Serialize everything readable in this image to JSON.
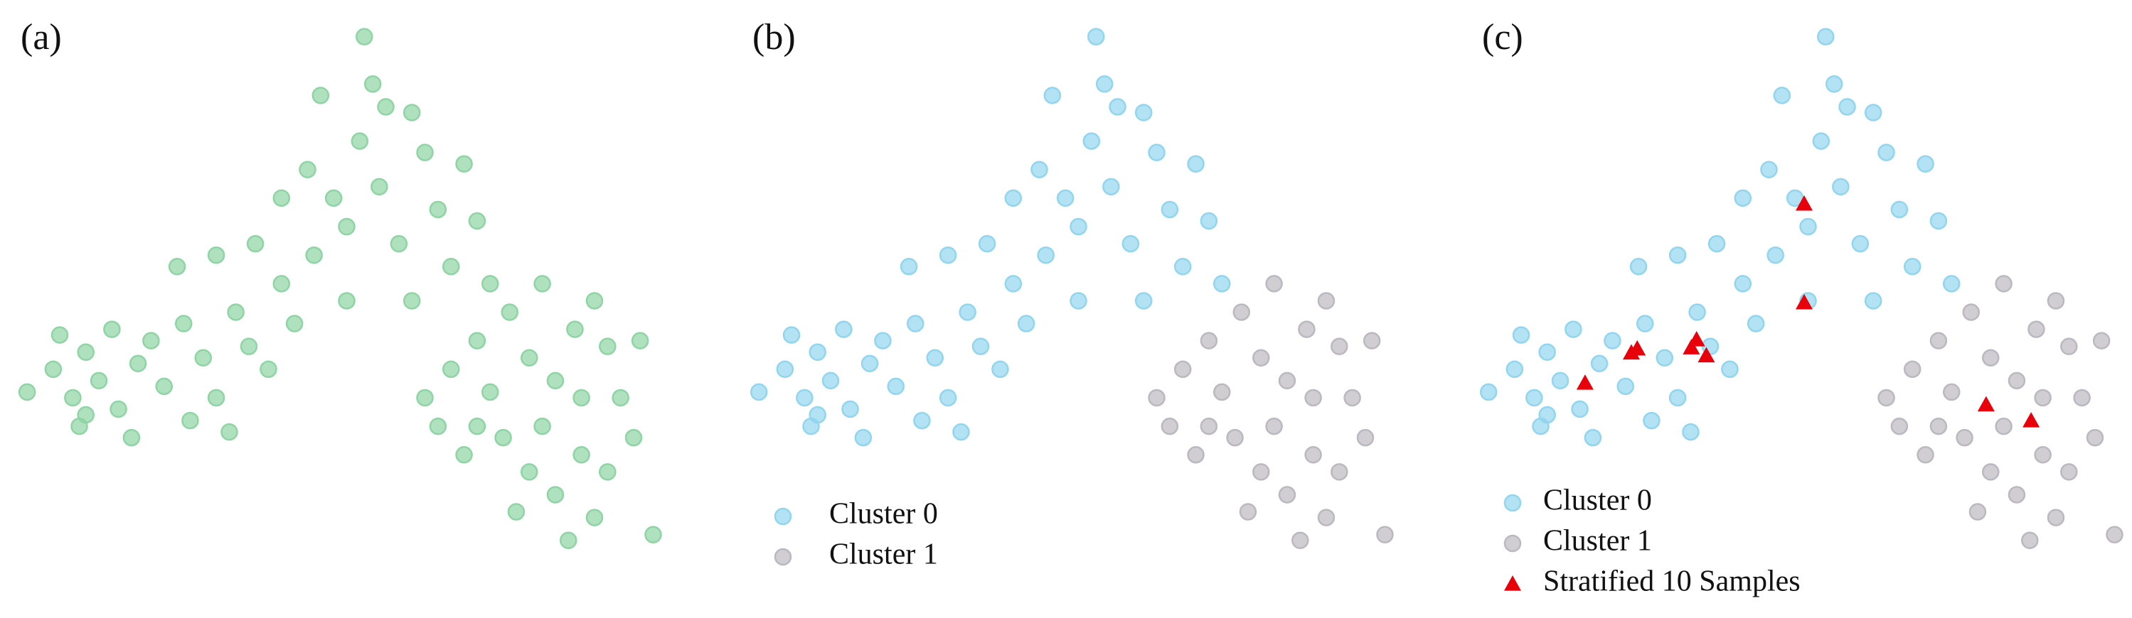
{
  "chart_data": [
    {
      "type": "scatter",
      "title": "(a)",
      "xlim": [
        0,
        100
      ],
      "ylim": [
        0,
        100
      ],
      "series": [
        {
          "color": "#8fd4a4",
          "marker": "circle",
          "x": [
            1,
            5,
            8,
            10,
            12,
            15,
            18,
            20,
            22,
            25,
            28,
            30,
            33,
            35,
            38,
            40,
            42,
            26,
            14,
            6,
            9,
            17,
            32,
            45,
            48,
            50,
            44,
            52,
            55,
            58,
            60,
            46,
            62,
            64,
            66,
            54,
            56,
            40,
            36,
            52.7,
            68,
            70,
            72,
            60,
            50,
            24,
            30,
            10,
            62,
            66,
            70,
            72,
            75,
            78,
            80,
            82,
            85,
            88,
            90,
            92,
            95,
            74,
            78,
            82,
            86,
            90,
            70,
            84,
            76,
            88,
            94,
            97,
            68,
            80,
            86,
            64
          ],
          "values": [
            36,
            40,
            35,
            43,
            38,
            33,
            41,
            45,
            37,
            48,
            42,
            35,
            50,
            44,
            40,
            55,
            48,
            31,
            47,
            46,
            30,
            28,
            29,
            60,
            70,
            65,
            75,
            80,
            72,
            62,
            85,
            88,
            78,
            68,
            58,
            90,
            86,
            70,
            62,
            98.3,
            76,
            66,
            55,
            52,
            52,
            58,
            60,
            32,
            35,
            40,
            45,
            36,
            50,
            42,
            55,
            38,
            47,
            52,
            44,
            35,
            45,
            28,
            22,
            18,
            25,
            22,
            30,
            10,
            15,
            14,
            28,
            11,
            25,
            30,
            35,
            30
          ]
        }
      ]
    },
    {
      "type": "scatter",
      "title": "(b)",
      "xlim": [
        0,
        100
      ],
      "ylim": [
        0,
        100
      ],
      "legend": "lower-left",
      "series": [
        {
          "name": "Cluster 0",
          "color": "#92d5ee",
          "marker": "circle",
          "x": [
            1,
            5,
            8,
            10,
            12,
            15,
            18,
            20,
            22,
            25,
            28,
            30,
            33,
            35,
            38,
            40,
            42,
            26,
            14,
            6,
            9,
            17,
            32,
            45,
            48,
            50,
            44,
            52,
            55,
            58,
            60,
            46,
            62,
            64,
            66,
            54,
            56,
            40,
            36,
            52.7,
            68,
            70,
            72,
            60,
            50,
            24,
            30,
            10
          ],
          "values": [
            36,
            40,
            35,
            43,
            38,
            33,
            41,
            45,
            37,
            48,
            42,
            35,
            50,
            44,
            40,
            55,
            48,
            31,
            47,
            46,
            30,
            28,
            29,
            60,
            70,
            65,
            75,
            80,
            72,
            62,
            85,
            88,
            78,
            68,
            58,
            90,
            86,
            70,
            62,
            98.3,
            76,
            66,
            55,
            52,
            52,
            58,
            60,
            32
          ]
        },
        {
          "name": "Cluster 1",
          "color": "#bcb8c0",
          "marker": "circle",
          "x": [
            62,
            66,
            70,
            72,
            75,
            78,
            80,
            82,
            85,
            88,
            90,
            92,
            95,
            74,
            78,
            82,
            86,
            90,
            70,
            84,
            76,
            88,
            94,
            97,
            68,
            80,
            86,
            64
          ],
          "values": [
            35,
            40,
            45,
            36,
            50,
            42,
            55,
            38,
            47,
            52,
            44,
            35,
            45,
            28,
            22,
            18,
            25,
            22,
            30,
            10,
            15,
            14,
            28,
            11,
            25,
            30,
            35,
            30
          ]
        }
      ]
    },
    {
      "type": "scatter",
      "title": "(c)",
      "xlim": [
        0,
        100
      ],
      "ylim": [
        0,
        100
      ],
      "legend": "lower-left",
      "series": [
        {
          "name": "Cluster 0",
          "color": "#92d5ee",
          "marker": "circle",
          "x": [
            1,
            5,
            8,
            10,
            12,
            15,
            18,
            20,
            22,
            25,
            28,
            30,
            33,
            35,
            38,
            40,
            42,
            26,
            14,
            6,
            9,
            17,
            32,
            45,
            48,
            50,
            44,
            52,
            55,
            58,
            60,
            46,
            62,
            64,
            66,
            54,
            56,
            40,
            36,
            52.7,
            68,
            70,
            72,
            60,
            50,
            24,
            30,
            10
          ],
          "values": [
            36,
            40,
            35,
            43,
            38,
            33,
            41,
            45,
            37,
            48,
            42,
            35,
            50,
            44,
            40,
            55,
            48,
            31,
            47,
            46,
            30,
            28,
            29,
            60,
            70,
            65,
            75,
            80,
            72,
            62,
            85,
            88,
            78,
            68,
            58,
            90,
            86,
            70,
            62,
            98.3,
            76,
            66,
            55,
            52,
            52,
            58,
            60,
            32
          ]
        },
        {
          "name": "Cluster 1",
          "color": "#bcb8c0",
          "marker": "circle",
          "x": [
            62,
            66,
            70,
            72,
            75,
            78,
            80,
            82,
            85,
            88,
            90,
            92,
            95,
            74,
            78,
            82,
            86,
            90,
            70,
            84,
            76,
            88,
            94,
            97,
            68,
            80,
            86,
            64
          ],
          "values": [
            35,
            40,
            45,
            36,
            50,
            42,
            55,
            38,
            47,
            52,
            44,
            35,
            45,
            28,
            22,
            18,
            25,
            22,
            30,
            10,
            15,
            14,
            28,
            11,
            25,
            30,
            35,
            30
          ]
        },
        {
          "name": "Stratified 10 Samples",
          "color": "#e8000b",
          "marker": "triangle",
          "x": [
            49.4,
            15.8,
            22.9,
            23.8,
            32.9,
            32.1,
            34.4,
            49.4,
            77.3,
            84.2
          ],
          "values": [
            69.0,
            37.6,
            42.9,
            43.6,
            45.2,
            43.8,
            42.4,
            51.7,
            33.8,
            31.0
          ]
        }
      ]
    }
  ]
}
